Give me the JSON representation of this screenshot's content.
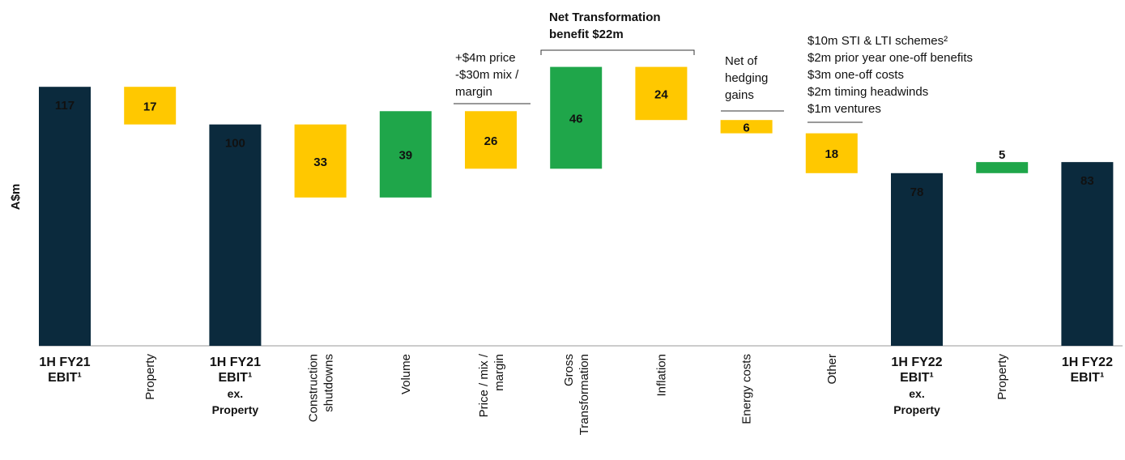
{
  "chart_data": {
    "type": "waterfall",
    "y_label": "A$m",
    "categories": [
      [
        "1H FY21",
        "EBIT¹"
      ],
      [
        "Property"
      ],
      [
        "1H FY21",
        "EBIT¹",
        "ex.",
        "Property"
      ],
      [
        "Construction",
        "shutdowns"
      ],
      [
        "Volume"
      ],
      [
        "Price / mix /",
        "margin"
      ],
      [
        "Gross",
        "Transformation"
      ],
      [
        "Inflation"
      ],
      [
        "Energy costs"
      ],
      [
        "Other"
      ],
      [
        "1H FY22",
        "EBIT¹",
        "ex.",
        "Property"
      ],
      [
        "Property"
      ],
      [
        "1H FY22",
        "EBIT¹"
      ]
    ],
    "measures": [
      "total",
      "relative",
      "total",
      "relative",
      "relative",
      "relative",
      "relative",
      "relative",
      "relative",
      "relative",
      "total",
      "relative",
      "total"
    ],
    "values": [
      117,
      -17,
      100,
      -33,
      39,
      -26,
      46,
      -24,
      -6,
      -18,
      78,
      5,
      83
    ],
    "value_labels": [
      "117",
      "17",
      "100",
      "33",
      "39",
      "26",
      "46",
      "24",
      "6",
      "18",
      "78",
      "5",
      "83"
    ],
    "total_color": "#0b2a3d",
    "increase_color": "#1fa64a",
    "decrease_color": "#ffc800",
    "ylim": [
      0,
      150
    ],
    "annotations": [
      {
        "lines": [
          "+$4m price",
          "-$30m mix /",
          "margin"
        ]
      },
      {
        "lines": [
          "Net Transformation",
          "benefit $22m"
        ]
      },
      {
        "lines": [
          "Net of",
          "hedging",
          "gains"
        ]
      },
      {
        "lines": [
          "$10m STI & LTI schemes²",
          "$2m prior year one-off benefits",
          "$3m one-off costs",
          "$2m timing headwinds",
          "$1m ventures"
        ]
      }
    ]
  }
}
